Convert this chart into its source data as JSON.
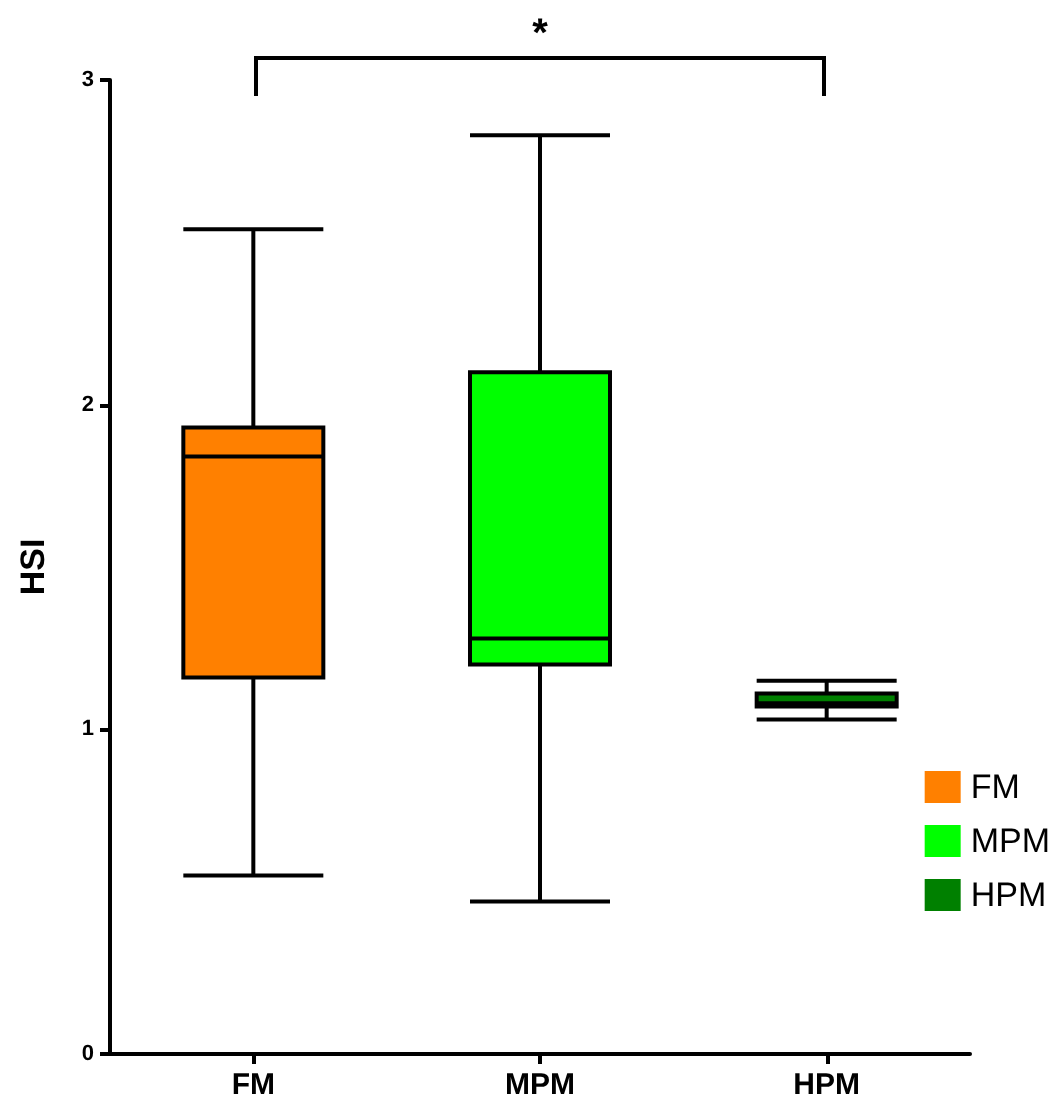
{
  "chart_data": {
    "type": "box",
    "ylabel": "HSI",
    "categories": [
      "FM",
      "MPM",
      "HPM"
    ],
    "series": [
      {
        "name": "FM",
        "color": "#ff8000",
        "boxes": [
          {
            "low": 0.55,
            "q1": 1.16,
            "median": 1.84,
            "q3": 1.93,
            "high": 2.54
          },
          null,
          null
        ]
      },
      {
        "name": "MPM",
        "color": "#00ff00",
        "boxes": [
          null,
          {
            "low": 0.47,
            "q1": 1.2,
            "median": 1.28,
            "q3": 2.1,
            "high": 2.83
          },
          null
        ]
      },
      {
        "name": "HPM",
        "color": "#008000",
        "boxes": [
          null,
          null,
          {
            "low": 1.03,
            "q1": 1.07,
            "median": 1.08,
            "q3": 1.11,
            "high": 1.15
          }
        ]
      }
    ],
    "ylim": [
      0,
      3
    ],
    "yticks": [
      0,
      1,
      2,
      3
    ],
    "grid": false,
    "legend": "right",
    "annotations": [
      "*"
    ]
  }
}
